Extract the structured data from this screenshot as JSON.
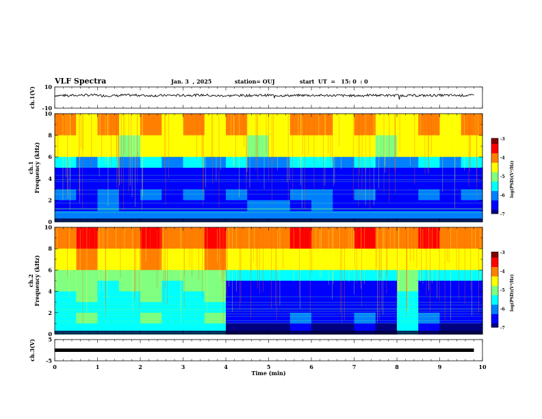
{
  "header": {
    "title": "VLF Spectra",
    "date": "Jan. 3  , 2025",
    "station": "station= OUJ",
    "start": "start  UT  =   15: 0  : 0"
  },
  "colors": {
    "spectrogram_scale": [
      "#000080",
      "#0000ff",
      "#0080ff",
      "#00ffff",
      "#80ff80",
      "#ffff00",
      "#ff8000",
      "#ff0000",
      "#800000"
    ]
  },
  "chart_data": [
    {
      "type": "line",
      "ylabel": "ch.1(V)",
      "ylim": [
        -10,
        10
      ],
      "yticks": [
        "10",
        "-10"
      ],
      "x": [
        0,
        0.5,
        1,
        1.5,
        2,
        2.5,
        3,
        3.5,
        4,
        4.5,
        5,
        5.5,
        6,
        6.5,
        7,
        7.5,
        8,
        8.5,
        9,
        9.8
      ],
      "values": [
        2,
        2.3,
        1.8,
        2.2,
        1.9,
        2.1,
        2.3,
        1.7,
        2.0,
        2.2,
        1.9,
        2.1,
        2.0,
        1.8,
        2.2,
        2.0,
        1.9,
        2.1,
        2.0,
        2.1
      ],
      "grid": false
    },
    {
      "type": "heatmap",
      "ylabel": "ch.1\nFrequency (kHz)",
      "ylim": [
        0,
        10
      ],
      "yticks": [
        "0",
        "2",
        "4",
        "6",
        "8",
        "10"
      ],
      "colorbar_label": "log(PSD)(V²/Hz)",
      "colorbar_ticks": [
        "-3",
        "-4",
        "-5",
        "-6",
        "-7"
      ],
      "colorbar_range": [
        -7,
        -3
      ],
      "x_cols": [
        0,
        0.5,
        1,
        1.5,
        2,
        2.5,
        3,
        3.5,
        4,
        4.5,
        5,
        5.5,
        6,
        6.5,
        7,
        7.5,
        8,
        8.5,
        9,
        9.5
      ],
      "freq_rows": [
        10,
        8,
        6,
        5,
        4,
        3,
        2,
        1
      ],
      "z": [
        [
          -4.2,
          -4.3,
          -4.1,
          -4.4,
          -4.2,
          -4.3,
          -4.1,
          -4.3,
          -4.2,
          -4.4,
          -4.3,
          -4.2,
          -4.1,
          -4.3,
          -4.2,
          -4.4,
          -4.3,
          -4.2,
          -4.3,
          -4.2
        ],
        [
          -4.6,
          -4.7,
          -4.5,
          -4.8,
          -4.6,
          -4.7,
          -4.5,
          -4.7,
          -4.6,
          -4.8,
          -4.7,
          -4.6,
          -4.5,
          -4.7,
          -4.6,
          -4.8,
          -4.7,
          -4.6,
          -4.7,
          -4.6
        ],
        [
          -5.6,
          -5.8,
          -5.5,
          -5.9,
          -5.7,
          -5.8,
          -5.6,
          -5.8,
          -5.7,
          -5.9,
          -5.8,
          -5.7,
          -5.6,
          -5.8,
          -5.7,
          -5.9,
          -5.8,
          -5.7,
          -5.8,
          -5.7
        ],
        [
          -6.5,
          -6.6,
          -6.4,
          -6.6,
          -6.5,
          -6.6,
          -6.5,
          -6.6,
          -6.5,
          -6.6,
          -6.6,
          -6.5,
          -6.4,
          -6.6,
          -6.5,
          -6.6,
          -6.6,
          -6.5,
          -6.6,
          -6.5
        ],
        [
          -6.4,
          -6.5,
          -6.3,
          -6.5,
          -6.4,
          -6.5,
          -6.4,
          -6.5,
          -6.4,
          -6.5,
          -6.5,
          -6.4,
          -6.3,
          -6.5,
          -6.4,
          -6.5,
          -6.5,
          -6.4,
          -6.5,
          -6.4
        ],
        [
          -6.2,
          -6.3,
          -6.1,
          -6.3,
          -6.2,
          -6.3,
          -6.2,
          -6.3,
          -6.2,
          -6.3,
          -6.3,
          -6.2,
          -6.1,
          -6.3,
          -6.2,
          -6.3,
          -6.3,
          -6.2,
          -6.3,
          -6.2
        ],
        [
          -6.3,
          -6.4,
          -6.2,
          -6.4,
          -6.3,
          -6.4,
          -6.3,
          -6.4,
          -6.3,
          -6.0,
          -5.8,
          -6.3,
          -6.2,
          -6.4,
          -6.3,
          -6.4,
          -6.4,
          -6.3,
          -6.4,
          -6.3
        ],
        [
          -6.1,
          -6.2,
          -6.0,
          -6.2,
          -6.1,
          -6.2,
          -6.1,
          -6.2,
          -6.1,
          -6.2,
          -6.2,
          -6.1,
          -6.0,
          -6.2,
          -6.1,
          -6.2,
          -6.2,
          -6.1,
          -6.2,
          -6.1
        ]
      ]
    },
    {
      "type": "heatmap",
      "ylabel": "ch.2\nFrequency (kHz)",
      "ylim": [
        0,
        10
      ],
      "yticks": [
        "0",
        "2",
        "4",
        "6",
        "8",
        "10"
      ],
      "colorbar_label": "log(PSD)(V²/Hz)",
      "colorbar_ticks": [
        "-3",
        "-4",
        "-5",
        "-6",
        "-7"
      ],
      "colorbar_range": [
        -7,
        -3
      ],
      "x_cols": [
        0,
        0.5,
        1,
        1.5,
        2,
        2.5,
        3,
        3.5,
        4,
        4.5,
        5,
        5.5,
        6,
        6.5,
        7,
        7.5,
        8,
        8.5,
        9,
        9.5
      ],
      "freq_rows": [
        10,
        8,
        6,
        5,
        4,
        3,
        2,
        1
      ],
      "z": [
        [
          -3.8,
          -3.7,
          -3.9,
          -3.8,
          -3.7,
          -3.9,
          -3.8,
          -3.7,
          -3.9,
          -3.8,
          -3.8,
          -3.7,
          -3.9,
          -3.8,
          -3.7,
          -3.9,
          -3.8,
          -3.7,
          -3.8,
          -3.9
        ],
        [
          -4.3,
          -4.2,
          -4.4,
          -4.3,
          -4.2,
          -4.4,
          -4.3,
          -4.2,
          -4.5,
          -4.4,
          -4.4,
          -4.3,
          -4.5,
          -4.4,
          -4.3,
          -4.5,
          -4.4,
          -4.3,
          -4.4,
          -4.5
        ],
        [
          -4.9,
          -4.8,
          -5.0,
          -4.9,
          -4.8,
          -5.0,
          -4.9,
          -4.8,
          -5.3,
          -5.4,
          -5.4,
          -5.3,
          -5.5,
          -5.4,
          -5.3,
          -5.5,
          -4.9,
          -5.3,
          -5.4,
          -5.5
        ],
        [
          -5.2,
          -5.1,
          -5.3,
          -5.2,
          -5.1,
          -5.3,
          -5.2,
          -5.1,
          -6.4,
          -6.5,
          -6.4,
          -6.3,
          -6.5,
          -6.4,
          -6.3,
          -6.5,
          -5.2,
          -6.3,
          -6.4,
          -6.5
        ],
        [
          -5.3,
          -5.2,
          -5.4,
          -5.3,
          -5.2,
          -5.4,
          -5.3,
          -5.2,
          -6.5,
          -6.6,
          -6.5,
          -6.4,
          -6.6,
          -6.5,
          -6.4,
          -6.6,
          -5.3,
          -6.4,
          -6.5,
          -6.6
        ],
        [
          -5.4,
          -5.3,
          -5.5,
          -5.4,
          -5.3,
          -5.5,
          -5.4,
          -5.3,
          -6.4,
          -6.5,
          -6.4,
          -6.3,
          -6.5,
          -6.4,
          -6.3,
          -6.5,
          -5.4,
          -6.3,
          -6.4,
          -6.5
        ],
        [
          -5.3,
          -5.2,
          -5.4,
          -5.3,
          -5.2,
          -5.4,
          -5.3,
          -5.2,
          -6.3,
          -6.4,
          -6.3,
          -6.2,
          -6.4,
          -6.3,
          -6.2,
          -6.4,
          -5.3,
          -6.2,
          -6.3,
          -6.4
        ],
        [
          -5.6,
          -5.5,
          -5.7,
          -5.6,
          -5.5,
          -5.7,
          -5.6,
          -5.5,
          -6.8,
          -6.9,
          -6.8,
          -6.7,
          -6.9,
          -6.8,
          -6.7,
          -6.9,
          -5.6,
          -6.7,
          -6.8,
          -6.9
        ]
      ]
    },
    {
      "type": "line",
      "ylabel": "ch.3(V)",
      "ylim": [
        -5,
        5
      ],
      "yticks": [
        "5",
        "-5"
      ],
      "x": [
        0,
        9.8
      ],
      "values": [
        0,
        0
      ],
      "grid": false
    }
  ],
  "xaxis": {
    "label": "Time  (min)",
    "xlim": [
      0,
      10
    ],
    "ticks": [
      "0",
      "1",
      "2",
      "3",
      "4",
      "5",
      "6",
      "7",
      "8",
      "9",
      "10"
    ]
  }
}
